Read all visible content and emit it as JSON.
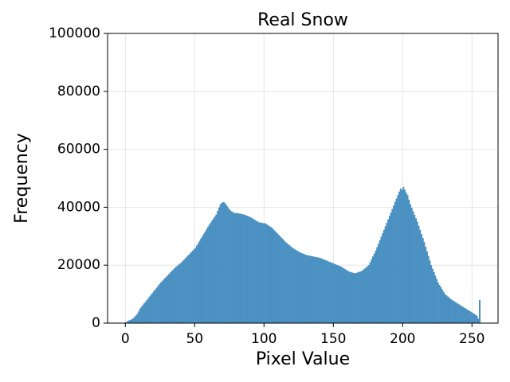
{
  "chart_data": {
    "type": "histogram",
    "title": "Real Snow",
    "xlabel": "Pixel Value",
    "ylabel": "Frequency",
    "color": "#4b91c2",
    "grid": true,
    "xlim": [
      -12.8,
      268.8
    ],
    "ylim": [
      0,
      100000
    ],
    "xticks": [
      0,
      50,
      100,
      150,
      200,
      250
    ],
    "yticks": [
      0,
      20000,
      40000,
      60000,
      80000,
      100000
    ],
    "bins": [
      0,
      1,
      2,
      3,
      4,
      5,
      6,
      7,
      8,
      9,
      10,
      11,
      12,
      13,
      14,
      15,
      16,
      17,
      18,
      19,
      20,
      21,
      22,
      23,
      24,
      25,
      26,
      27,
      28,
      29,
      30,
      31,
      32,
      33,
      34,
      35,
      36,
      37,
      38,
      39,
      40,
      41,
      42,
      43,
      44,
      45,
      46,
      47,
      48,
      49,
      50,
      51,
      52,
      53,
      54,
      55,
      56,
      57,
      58,
      59,
      60,
      61,
      62,
      63,
      64,
      65,
      66,
      67,
      68,
      69,
      70,
      71,
      72,
      73,
      74,
      75,
      76,
      77,
      78,
      79,
      80,
      81,
      82,
      83,
      84,
      85,
      86,
      87,
      88,
      89,
      90,
      91,
      92,
      93,
      94,
      95,
      96,
      97,
      98,
      99,
      100,
      101,
      102,
      103,
      104,
      105,
      106,
      107,
      108,
      109,
      110,
      111,
      112,
      113,
      114,
      115,
      116,
      117,
      118,
      119,
      120,
      121,
      122,
      123,
      124,
      125,
      126,
      127,
      128,
      129,
      130,
      131,
      132,
      133,
      134,
      135,
      136,
      137,
      138,
      139,
      140,
      141,
      142,
      143,
      144,
      145,
      146,
      147,
      148,
      149,
      150,
      151,
      152,
      153,
      154,
      155,
      156,
      157,
      158,
      159,
      160,
      161,
      162,
      163,
      164,
      165,
      166,
      167,
      168,
      169,
      170,
      171,
      172,
      173,
      174,
      175,
      176,
      177,
      178,
      179,
      180,
      181,
      182,
      183,
      184,
      185,
      186,
      187,
      188,
      189,
      190,
      191,
      192,
      193,
      194,
      195,
      196,
      197,
      198,
      199,
      200,
      201,
      202,
      203,
      204,
      205,
      206,
      207,
      208,
      209,
      210,
      211,
      212,
      213,
      214,
      215,
      216,
      217,
      218,
      219,
      220,
      221,
      222,
      223,
      224,
      225,
      226,
      227,
      228,
      229,
      230,
      231,
      232,
      233,
      234,
      235,
      236,
      237,
      238,
      239,
      240,
      241,
      242,
      243,
      244,
      245,
      246,
      247,
      248,
      249,
      250,
      251,
      252,
      253,
      254,
      255,
      256
    ],
    "values": [
      300,
      600,
      900,
      1100,
      1300,
      1600,
      2100,
      2600,
      3100,
      4000,
      5000,
      5600,
      6200,
      6800,
      7400,
      8000,
      8600,
      9200,
      9800,
      10400,
      11000,
      11600,
      12200,
      12800,
      13400,
      14000,
      14500,
      15000,
      15500,
      16000,
      16500,
      17000,
      17500,
      18000,
      18500,
      19000,
      19400,
      19800,
      20200,
      20600,
      21000,
      21500,
      22000,
      22500,
      23000,
      23500,
      24000,
      24500,
      25000,
      25500,
      26000,
      26800,
      27600,
      28400,
      29200,
      30000,
      30800,
      31600,
      32400,
      33200,
      34000,
      34700,
      35400,
      36100,
      36800,
      37500,
      38700,
      39900,
      41000,
      41500,
      41800,
      41600,
      41000,
      40300,
      39600,
      39000,
      38600,
      38300,
      38000,
      38000,
      38000,
      37900,
      37800,
      37700,
      37600,
      37500,
      37300,
      37100,
      36900,
      36700,
      36500,
      36200,
      35900,
      35600,
      35300,
      35000,
      34800,
      34700,
      34600,
      34500,
      34500,
      34200,
      33900,
      33600,
      33300,
      33000,
      32500,
      32000,
      31500,
      31000,
      30500,
      30000,
      29500,
      29000,
      28500,
      28000,
      27600,
      27200,
      26800,
      26400,
      26000,
      25700,
      25400,
      25100,
      24800,
      24500,
      24300,
      24100,
      23900,
      23700,
      23500,
      23400,
      23300,
      23200,
      23100,
      23000,
      22900,
      22800,
      22700,
      22600,
      22500,
      22300,
      22100,
      21900,
      21700,
      21500,
      21300,
      21100,
      20900,
      20700,
      20500,
      20300,
      20100,
      19900,
      19700,
      19500,
      19200,
      18900,
      18600,
      18300,
      18000,
      17800,
      17600,
      17500,
      17300,
      17200,
      17300,
      17500,
      17700,
      17800,
      18000,
      18400,
      18800,
      19200,
      19600,
      20000,
      21000,
      22000,
      23000,
      24000,
      25000,
      26200,
      27400,
      28600,
      29800,
      31000,
      32200,
      33400,
      34600,
      35800,
      37000,
      38200,
      39400,
      40600,
      41800,
      43000,
      44200,
      45400,
      46500,
      46000,
      47000,
      46000,
      45000,
      44200,
      42600,
      41000,
      39800,
      38600,
      37400,
      36200,
      35000,
      33600,
      32200,
      30800,
      29400,
      28000,
      26400,
      24800,
      23200,
      21600,
      20000,
      18800,
      17600,
      16400,
      15200,
      14000,
      13200,
      12400,
      11600,
      10800,
      10000,
      9600,
      9200,
      8800,
      8400,
      8000,
      7700,
      7400,
      7100,
      6800,
      6500,
      6200,
      5900,
      5600,
      5300,
      5000,
      4700,
      4400,
      4100,
      3800,
      3500,
      3200,
      2900,
      2500,
      1500,
      8000
    ]
  }
}
